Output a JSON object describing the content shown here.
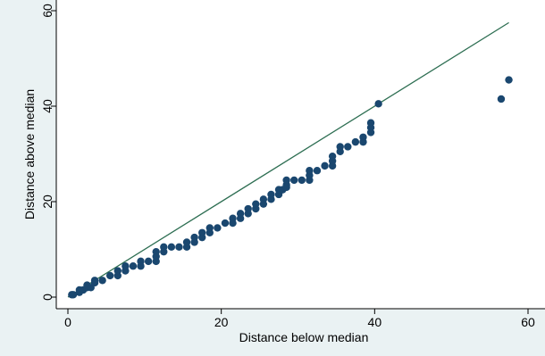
{
  "chart_data": {
    "type": "scatter",
    "title": "",
    "xlabel": "Distance below median",
    "ylabel": "Distance above median",
    "xlim": [
      0,
      60
    ],
    "ylim": [
      0,
      60
    ],
    "xticks": [
      0,
      20,
      40,
      60
    ],
    "yticks": [
      0,
      20,
      40,
      60
    ],
    "grid": false,
    "colors": {
      "points": "#1a476f",
      "reference_line": "#2d6e52",
      "plot_bg": "#ffffff",
      "outer_bg": "#eaf2f3"
    },
    "reference_line": {
      "x": [
        0,
        57.5
      ],
      "y": [
        0,
        57.5
      ]
    },
    "points": [
      {
        "x": 0.5,
        "y": 0.5
      },
      {
        "x": 0.7,
        "y": 0.5
      },
      {
        "x": 1.5,
        "y": 1.0
      },
      {
        "x": 1.5,
        "y": 1.5
      },
      {
        "x": 2.0,
        "y": 1.5
      },
      {
        "x": 2.5,
        "y": 2.0
      },
      {
        "x": 2.5,
        "y": 2.5
      },
      {
        "x": 3.0,
        "y": 2.0
      },
      {
        "x": 3.5,
        "y": 3.0
      },
      {
        "x": 3.5,
        "y": 3.5
      },
      {
        "x": 4.5,
        "y": 3.5
      },
      {
        "x": 5.5,
        "y": 4.5
      },
      {
        "x": 6.5,
        "y": 4.5
      },
      {
        "x": 6.5,
        "y": 5.5
      },
      {
        "x": 7.5,
        "y": 5.5
      },
      {
        "x": 7.5,
        "y": 6.5
      },
      {
        "x": 8.5,
        "y": 6.5
      },
      {
        "x": 9.5,
        "y": 6.5
      },
      {
        "x": 9.5,
        "y": 7.5
      },
      {
        "x": 10.5,
        "y": 7.5
      },
      {
        "x": 11.5,
        "y": 7.5
      },
      {
        "x": 11.5,
        "y": 8.5
      },
      {
        "x": 11.5,
        "y": 9.5
      },
      {
        "x": 12.5,
        "y": 9.5
      },
      {
        "x": 12.5,
        "y": 10.5
      },
      {
        "x": 13.5,
        "y": 10.5
      },
      {
        "x": 14.5,
        "y": 10.5
      },
      {
        "x": 15.5,
        "y": 10.5
      },
      {
        "x": 15.5,
        "y": 11.5
      },
      {
        "x": 16.5,
        "y": 11.5
      },
      {
        "x": 16.5,
        "y": 12.5
      },
      {
        "x": 17.5,
        "y": 12.5
      },
      {
        "x": 17.5,
        "y": 13.5
      },
      {
        "x": 18.5,
        "y": 13.5
      },
      {
        "x": 18.5,
        "y": 14.5
      },
      {
        "x": 19.5,
        "y": 14.5
      },
      {
        "x": 20.5,
        "y": 15.5
      },
      {
        "x": 21.5,
        "y": 15.5
      },
      {
        "x": 21.5,
        "y": 16.5
      },
      {
        "x": 22.5,
        "y": 16.5
      },
      {
        "x": 22.5,
        "y": 17.5
      },
      {
        "x": 23.5,
        "y": 17.5
      },
      {
        "x": 23.5,
        "y": 18.5
      },
      {
        "x": 24.5,
        "y": 18.5
      },
      {
        "x": 24.5,
        "y": 19.5
      },
      {
        "x": 25.5,
        "y": 19.5
      },
      {
        "x": 25.5,
        "y": 20.5
      },
      {
        "x": 26.5,
        "y": 20.5
      },
      {
        "x": 26.5,
        "y": 21.5
      },
      {
        "x": 27.5,
        "y": 21.5
      },
      {
        "x": 27.5,
        "y": 22.5
      },
      {
        "x": 28.0,
        "y": 22.5
      },
      {
        "x": 28.5,
        "y": 23.0
      },
      {
        "x": 28.5,
        "y": 23.5
      },
      {
        "x": 28.5,
        "y": 24.5
      },
      {
        "x": 29.5,
        "y": 24.5
      },
      {
        "x": 30.5,
        "y": 24.5
      },
      {
        "x": 31.5,
        "y": 24.5
      },
      {
        "x": 31.5,
        "y": 25.5
      },
      {
        "x": 31.5,
        "y": 26.5
      },
      {
        "x": 32.5,
        "y": 26.5
      },
      {
        "x": 33.5,
        "y": 27.5
      },
      {
        "x": 34.5,
        "y": 27.5
      },
      {
        "x": 34.5,
        "y": 28.5
      },
      {
        "x": 34.5,
        "y": 29.5
      },
      {
        "x": 35.5,
        "y": 30.5
      },
      {
        "x": 35.5,
        "y": 31.5
      },
      {
        "x": 36.5,
        "y": 31.5
      },
      {
        "x": 37.5,
        "y": 32.5
      },
      {
        "x": 38.5,
        "y": 32.5
      },
      {
        "x": 38.5,
        "y": 33.5
      },
      {
        "x": 39.5,
        "y": 34.5
      },
      {
        "x": 39.5,
        "y": 35.5
      },
      {
        "x": 39.5,
        "y": 36.5
      },
      {
        "x": 40.5,
        "y": 40.5
      },
      {
        "x": 56.5,
        "y": 41.5
      },
      {
        "x": 57.5,
        "y": 45.5
      }
    ]
  }
}
